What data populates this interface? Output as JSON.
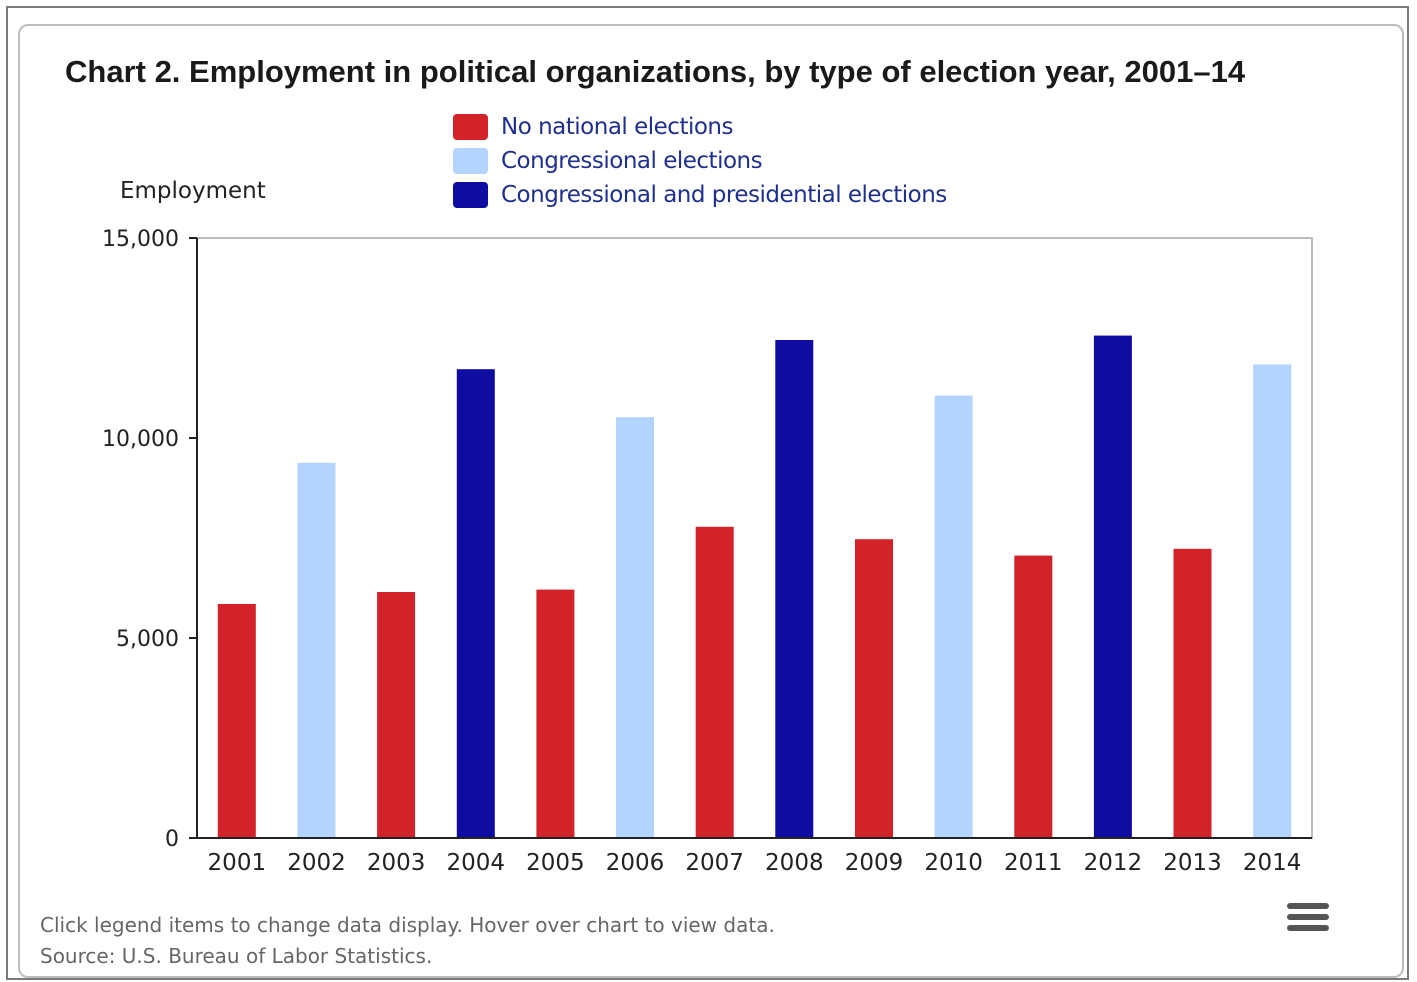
{
  "chart_data": {
    "type": "bar",
    "title": "Chart 2. Employment in political organizations, by type of election year, 2001–14",
    "ylabel": "Employment",
    "xlabel": "",
    "ylim": [
      0,
      15000
    ],
    "yticks": [
      {
        "value": 0,
        "label": "0"
      },
      {
        "value": 5000,
        "label": "5,000"
      },
      {
        "value": 10000,
        "label": "10,000"
      },
      {
        "value": 15000,
        "label": "15,000"
      }
    ],
    "grid": false,
    "legend_position": "top",
    "legend": [
      {
        "name": "No national elections",
        "color": "#d2232a"
      },
      {
        "name": "Congressional elections",
        "color": "#b3d4ff"
      },
      {
        "name": "Congressional and presidential elections",
        "color": "#0e0ca1"
      }
    ],
    "categories": [
      "2001",
      "2002",
      "2003",
      "2004",
      "2005",
      "2006",
      "2007",
      "2008",
      "2009",
      "2010",
      "2011",
      "2012",
      "2013",
      "2014"
    ],
    "bars": [
      {
        "x": "2001",
        "value": 5850,
        "type": 0
      },
      {
        "x": "2002",
        "value": 9380,
        "type": 1
      },
      {
        "x": "2003",
        "value": 6150,
        "type": 0
      },
      {
        "x": "2004",
        "value": 11720,
        "type": 2
      },
      {
        "x": "2005",
        "value": 6210,
        "type": 0
      },
      {
        "x": "2006",
        "value": 10520,
        "type": 1
      },
      {
        "x": "2007",
        "value": 7780,
        "type": 0
      },
      {
        "x": "2008",
        "value": 12450,
        "type": 2
      },
      {
        "x": "2009",
        "value": 7470,
        "type": 0
      },
      {
        "x": "2010",
        "value": 11060,
        "type": 1
      },
      {
        "x": "2011",
        "value": 7060,
        "type": 0
      },
      {
        "x": "2012",
        "value": 12560,
        "type": 2
      },
      {
        "x": "2013",
        "value": 7230,
        "type": 0
      },
      {
        "x": "2014",
        "value": 11840,
        "type": 1
      }
    ]
  },
  "footer": {
    "hint": "Click legend items to change data display. Hover over chart to view data.",
    "source": "Source: U.S. Bureau of Labor Statistics."
  },
  "menu": {
    "icon": "hamburger-menu-icon"
  }
}
